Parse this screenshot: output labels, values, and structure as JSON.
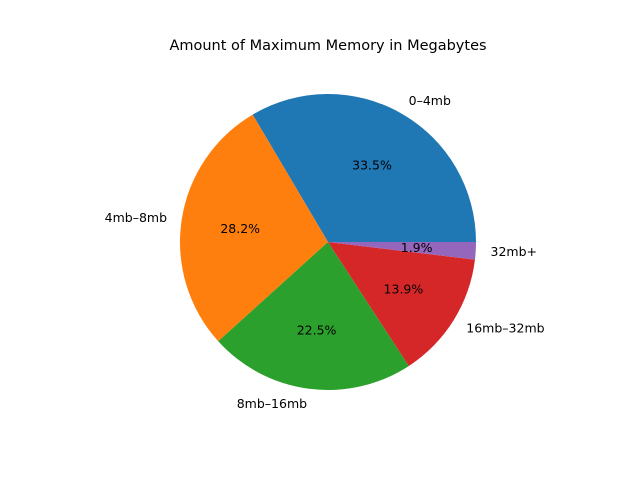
{
  "chart_data": {
    "type": "pie",
    "title": "Amount of Maximum Memory in Megabytes",
    "start_angle_deg": 0,
    "direction": "counterclockwise",
    "categories": [
      "0–4mb",
      "4mb–8mb",
      "8mb–16mb",
      "16mb–32mb",
      "32mb+"
    ],
    "values": [
      33.5,
      28.2,
      22.5,
      13.9,
      1.9
    ],
    "percent_labels": [
      "33.5%",
      "28.2%",
      "22.5%",
      "13.9%",
      "1.9%"
    ],
    "colors": [
      "#1f77b4",
      "#ff7f0e",
      "#2ca02c",
      "#d62728",
      "#9467bd"
    ],
    "legend": "none"
  }
}
